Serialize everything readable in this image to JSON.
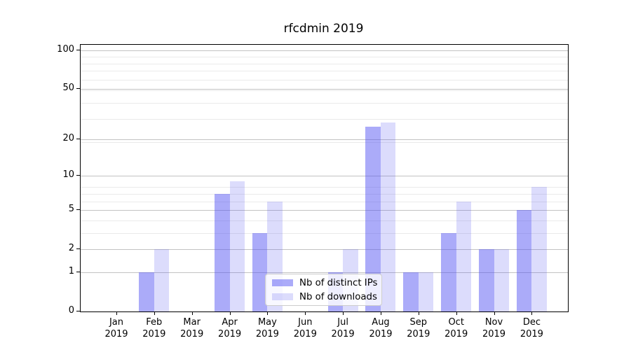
{
  "title": "rfcdmin 2019",
  "chart_data": {
    "type": "bar",
    "title": "rfcdmin 2019",
    "categories": [
      "Jan 2019",
      "Feb 2019",
      "Mar 2019",
      "Apr 2019",
      "May 2019",
      "Jun 2019",
      "Jul 2019",
      "Aug 2019",
      "Sep 2019",
      "Oct 2019",
      "Nov 2019",
      "Dec 2019"
    ],
    "series": [
      {
        "name": "Nb of distinct IPs",
        "color": "rgba(80,80,242,0.48)",
        "values": [
          0,
          1,
          0,
          7,
          3,
          0,
          1,
          25,
          1,
          3,
          2,
          5
        ]
      },
      {
        "name": "Nb of downloads",
        "color": "rgba(80,80,242,0.20)",
        "values": [
          0,
          2,
          0,
          9,
          6,
          0,
          2,
          27,
          1,
          6,
          2,
          8
        ]
      }
    ],
    "yscale": "log1p",
    "ylim": [
      0,
      110
    ],
    "yticks": [
      0,
      1,
      2,
      5,
      10,
      20,
      50,
      100
    ],
    "yticks_minor": [
      3,
      4,
      6,
      7,
      8,
      19,
      29,
      39,
      49,
      59,
      69,
      79,
      89
    ],
    "grid": true,
    "legend_position": "lower center"
  },
  "colors": {
    "background": "#ffffff",
    "axis": "#000000",
    "text": "#000000",
    "grid_major": "#c3c3c3",
    "grid_minor": "#eaeaea",
    "bar_ips": "rgba(80,80,242,0.48)",
    "bar_downloads": "rgba(80,80,242,0.20)",
    "legend_bg": "rgba(255,255,255,0.8)",
    "legend_border": "#cccccc"
  }
}
